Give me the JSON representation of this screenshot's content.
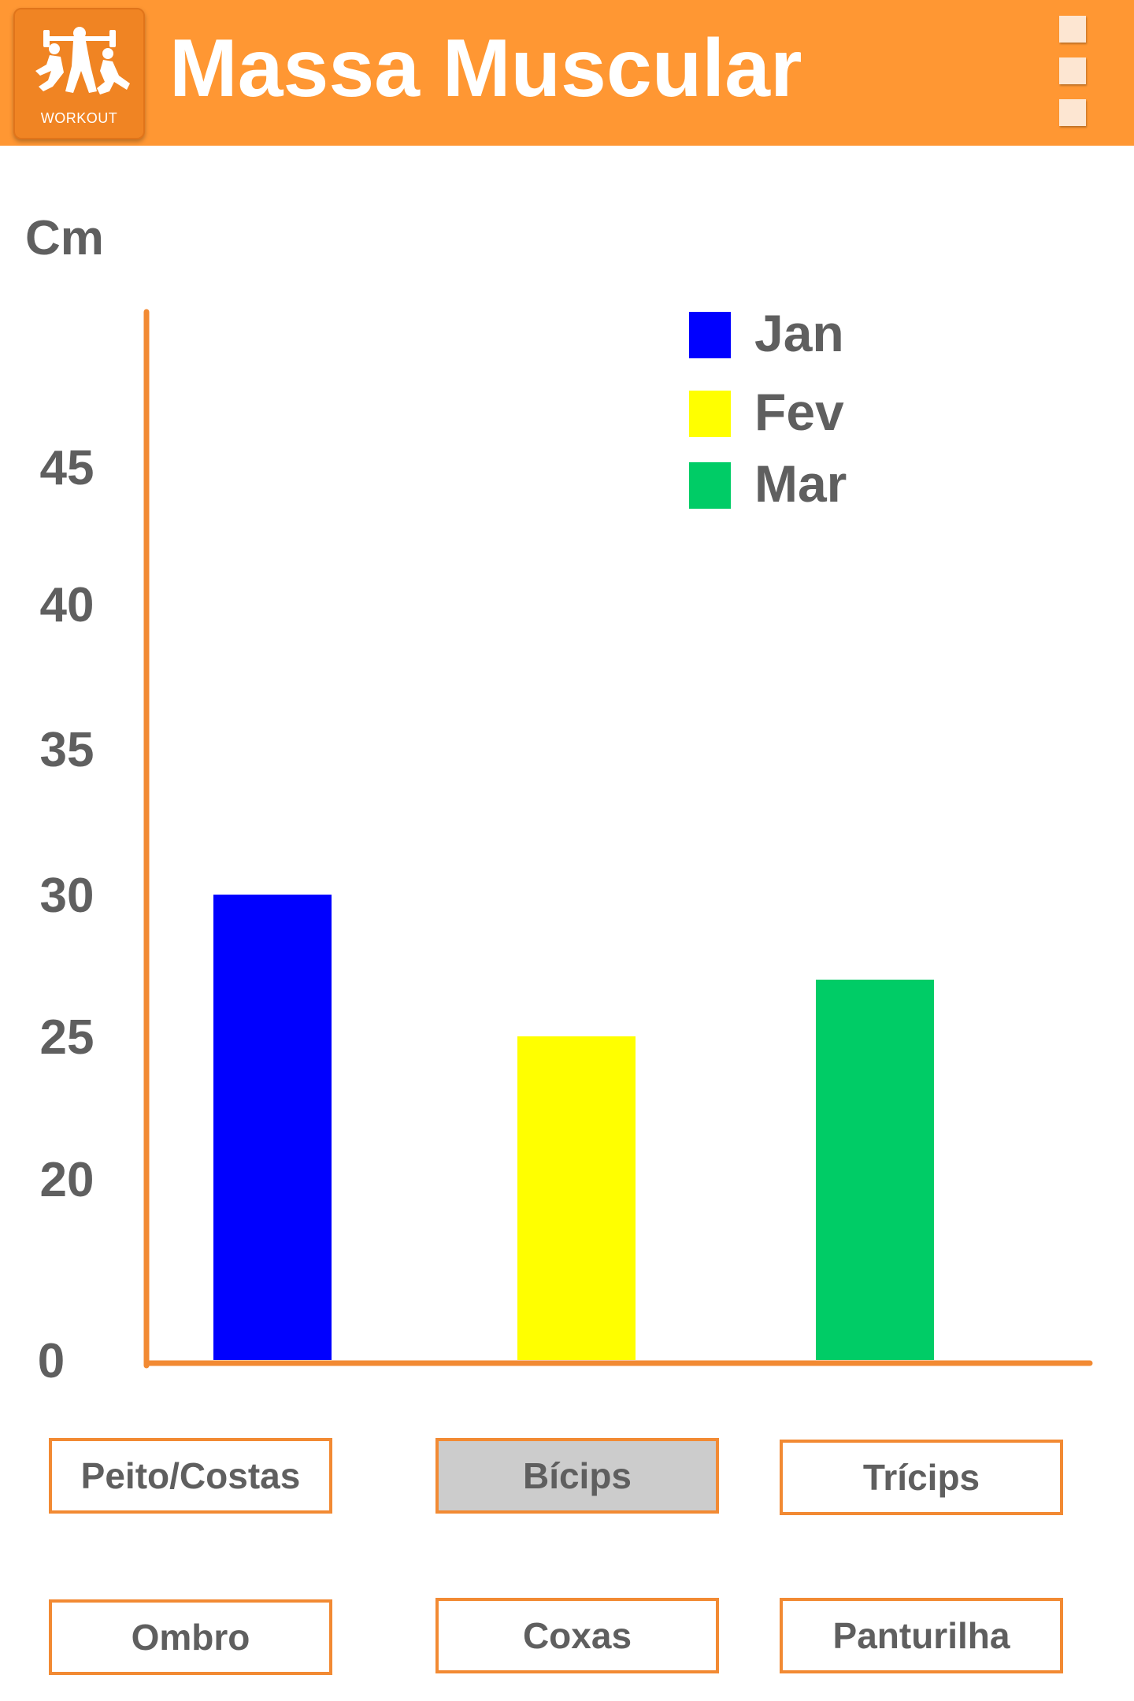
{
  "app_bar": {
    "title": "Massa Muscular",
    "logo_text": "WORKOUT",
    "background_color": "#ff9733",
    "icons": [
      "workout-logo-icon",
      "overflow-menu-icon"
    ]
  },
  "chart_data": {
    "type": "bar",
    "ylabel": "Cm",
    "yticks": [
      0,
      20,
      25,
      30,
      35,
      40,
      45
    ],
    "ylim": [
      0,
      50
    ],
    "categories": [
      "Jan",
      "Fev",
      "Mar"
    ],
    "values": [
      30,
      25,
      27
    ],
    "colors": [
      "#0000ff",
      "#ffff00",
      "#00cc66"
    ],
    "legend": {
      "placement": "top-right",
      "entries": [
        "Jan",
        "Fev",
        "Mar"
      ]
    },
    "axis_color": "#f28a33"
  },
  "categories": {
    "buttons": [
      "Peito/Costas",
      "Bícips",
      "Trícips",
      "Ombro",
      "Coxas",
      "Panturilha"
    ],
    "selected": "Bícips"
  }
}
